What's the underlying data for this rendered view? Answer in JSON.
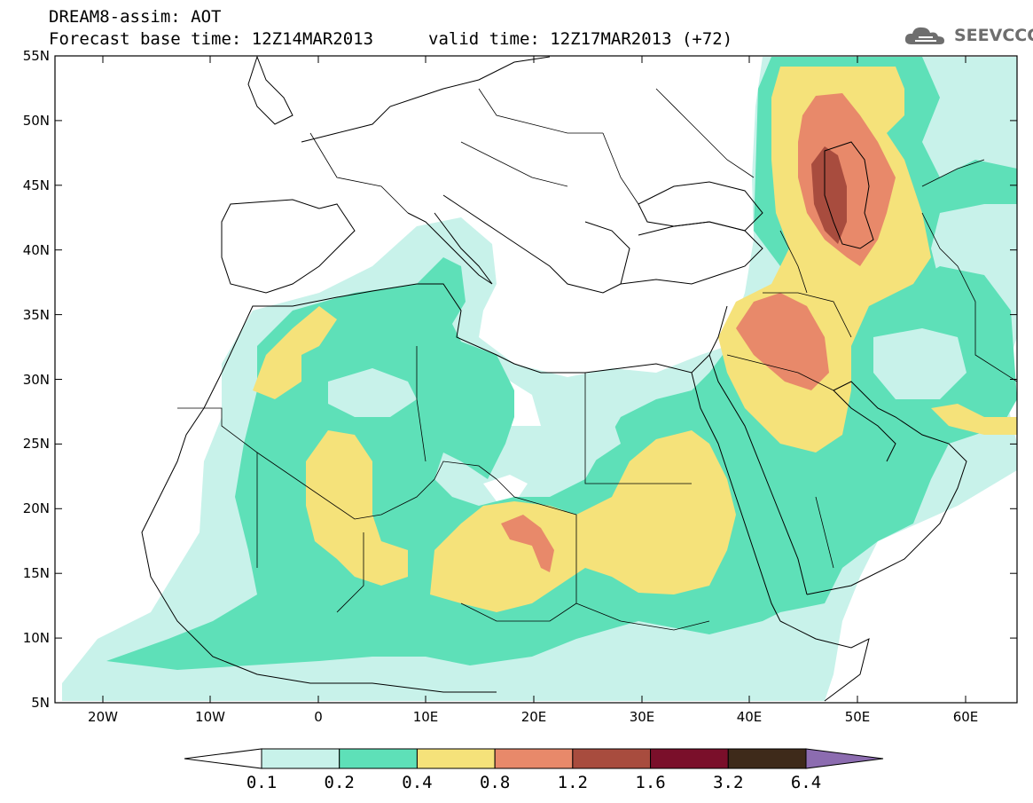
{
  "header": {
    "line1": "DREAM8-assim: AOT",
    "line2_base": "Forecast base time: 12Z14MAR2013",
    "line2_valid": "valid time: 12Z17MAR2013 (+72)"
  },
  "logo": {
    "text": "SEEVCCC",
    "icon": "cloud-icon"
  },
  "map": {
    "lat_labels": [
      "55N",
      "50N",
      "45N",
      "40N",
      "35N",
      "30N",
      "25N",
      "20N",
      "15N",
      "10N",
      "5N"
    ],
    "lon_labels": [
      "20W",
      "10W",
      "0",
      "10E",
      "20E",
      "30E",
      "40E",
      "50E",
      "60E"
    ],
    "field": "AOT"
  },
  "colorbar": {
    "labels": [
      "0.1",
      "0.2",
      "0.4",
      "0.8",
      "1.2",
      "1.6",
      "3.2",
      "6.4"
    ],
    "colors": [
      "#ffffff",
      "#c8f2ea",
      "#5ee0b8",
      "#f5e27a",
      "#e8896a",
      "#a84c3e",
      "#7a0f2a",
      "#3e2a1a",
      "#8c6cb0"
    ]
  }
}
